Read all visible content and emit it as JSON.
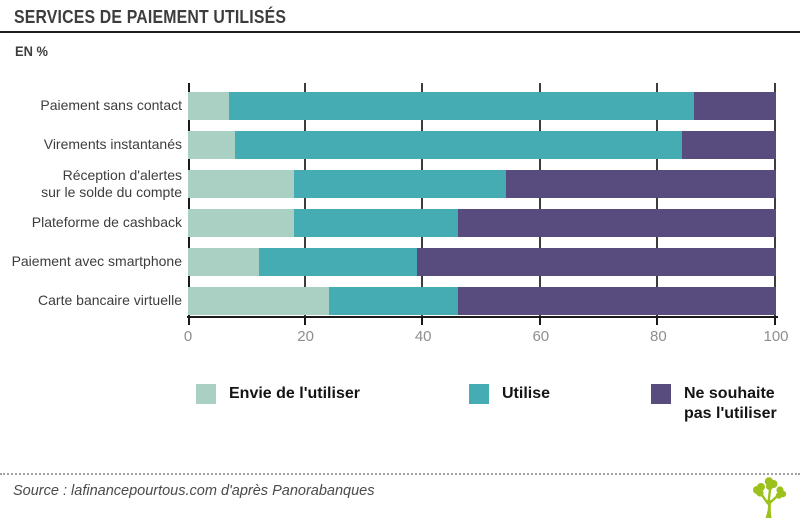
{
  "header": {
    "title": "SERVICES DE PAIEMENT UTILISÉS",
    "unit_label": "EN %"
  },
  "chart_data": {
    "type": "bar",
    "orientation": "horizontal",
    "stacked": true,
    "title": "Services de paiement utilisés",
    "unit": "%",
    "categories": [
      "Paiement sans contact",
      "Virements instantanés",
      "Réception d'alertes\nsur le solde du compte",
      "Plateforme de cashback",
      "Paiement avec smartphone",
      "Carte bancaire virtuelle"
    ],
    "series": [
      {
        "name": "Envie de l'utiliser",
        "color": "#a9d0c3",
        "values": [
          7,
          8,
          18,
          18,
          12,
          24
        ]
      },
      {
        "name": "Utilise",
        "color": "#45acb4",
        "values": [
          79,
          76,
          36,
          28,
          27,
          22
        ]
      },
      {
        "name": "Ne souhaite pas l'utiliser",
        "color": "#584b7e",
        "values": [
          14,
          16,
          46,
          54,
          61,
          54
        ]
      }
    ],
    "xlim": [
      0,
      100
    ],
    "x_ticks": [
      0,
      20,
      40,
      60,
      80,
      100
    ],
    "grid": true,
    "legend_position": "bottom"
  },
  "legend": {
    "items": [
      {
        "label": "Envie de l'utiliser",
        "color": "#a9d0c3"
      },
      {
        "label": "Utilise",
        "color": "#45acb4"
      },
      {
        "label": "Ne souhaite\npas l'utiliser",
        "color": "#584b7e"
      }
    ]
  },
  "footer": {
    "source": "Source : lafinancepourtous.com d'après Panorabanques",
    "logo": "lafinancepourtous-tree-logo",
    "logo_color": "#9cc11c"
  },
  "colors": {
    "text_dark": "#3d3d3d",
    "axis": "#1a1a1a",
    "gridline": "#3c3c3c",
    "tick_label": "#8e8e8e"
  }
}
